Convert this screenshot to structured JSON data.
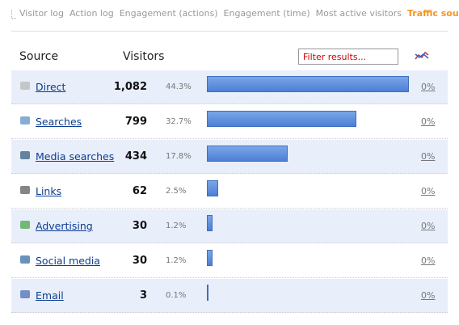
{
  "tabs": [
    "Visitor log",
    "Action log",
    "Engagement (actions)",
    "Engagement (time)",
    "Most active visitors",
    "Traffic sources"
  ],
  "active_tab": 5,
  "table": {
    "headers": [
      "Source",
      "Visitors"
    ],
    "filter_placeholder": "Filter results...",
    "rows": [
      {
        "source": "Direct",
        "visitors": {
          "value": 1082,
          "label": "1,082"
        },
        "percent": "44.3%",
        "change": "0%"
      },
      {
        "source": "Searches",
        "visitors": 799,
        "percent": "32.7%",
        "change": "0%"
      },
      {
        "source": "Media searches",
        "visitors": 434,
        "percent": "17.8%",
        "change": "0%"
      },
      {
        "source": "Links",
        "visitors": 62,
        "percent": "2.5%",
        "change": "0%"
      },
      {
        "source": "Advertising",
        "visitors": 30,
        "percent": "1.2%",
        "change": "0%"
      },
      {
        "source": "Social media",
        "visitors": 30,
        "percent": "1.2%",
        "change": "0%"
      },
      {
        "source": "Email",
        "visitors": 3,
        "percent": "0.1%",
        "change": "0%"
      }
    ]
  }
}
